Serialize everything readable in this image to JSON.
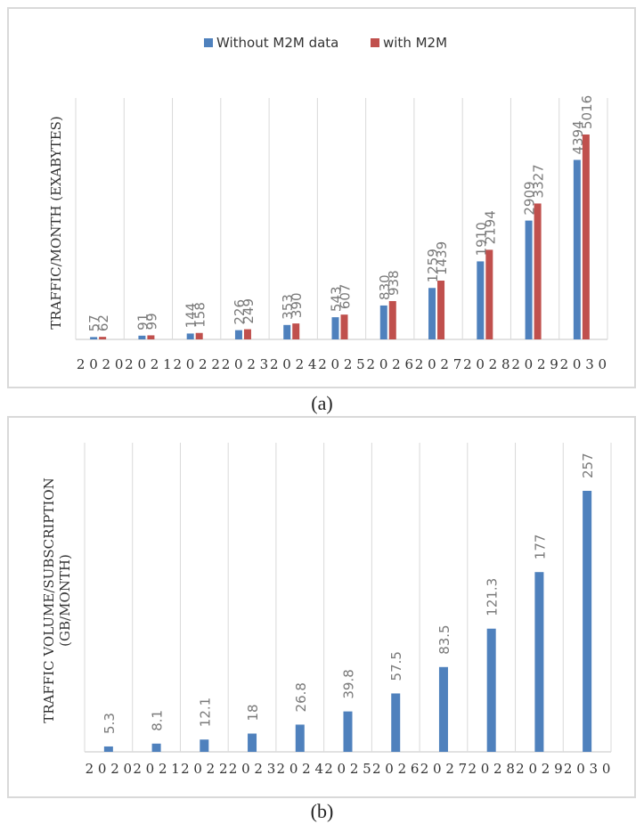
{
  "colors": {
    "blue": "#4f81bd",
    "red": "#c0504d",
    "grid": "#d9d9d9"
  },
  "captions": {
    "a": "(a)",
    "b": "(b)"
  },
  "chart_data": [
    {
      "type": "bar",
      "categories": [
        "2 0 2 0",
        "2 0 2 1",
        "2 0 2 2",
        "2 0 2 3",
        "2 0 2 4",
        "2 0 2 5",
        "2 0 2 6",
        "2 0 2 7",
        "2 0 2 8",
        "2 0 2 9",
        "2 0 3 0"
      ],
      "series": [
        {
          "name": "Without M2M data",
          "values": [
            57,
            91,
            144,
            226,
            353,
            543,
            830,
            1259,
            1910,
            2909,
            4394
          ]
        },
        {
          "name": "with M2M",
          "values": [
            62,
            99,
            158,
            249,
            390,
            607,
            938,
            1439,
            2194,
            3327,
            5016
          ]
        }
      ],
      "ylabel": "TRAFFIC/MONTH (EXABYTES)",
      "ylim": [
        0,
        5016
      ],
      "legend": "top-center",
      "grid": "vertical"
    },
    {
      "type": "bar",
      "categories": [
        "2 0 2 0",
        "2 0 2 1",
        "2 0 2 2",
        "2 0 2 3",
        "2 0 2 4",
        "2 0 2 5",
        "2 0 2 6",
        "2 0 2 7",
        "2 0 2 8",
        "2 0 2 9",
        "2 0 3 0"
      ],
      "series": [
        {
          "values": [
            5.3,
            8.1,
            12.1,
            18,
            26.8,
            39.8,
            57.5,
            83.5,
            121.3,
            177,
            257
          ]
        }
      ],
      "value_labels": [
        "5.3",
        "8.1",
        "12.1",
        "18",
        "26.8",
        "39.8",
        "57.5",
        "83.5",
        "121.3",
        "177",
        "257"
      ],
      "ylabel": [
        "TRAFFIC VOLUME/SUBSCRIPTION",
        "(GB/MONTH)"
      ],
      "ylim": [
        0,
        257
      ],
      "grid": "vertical"
    }
  ]
}
